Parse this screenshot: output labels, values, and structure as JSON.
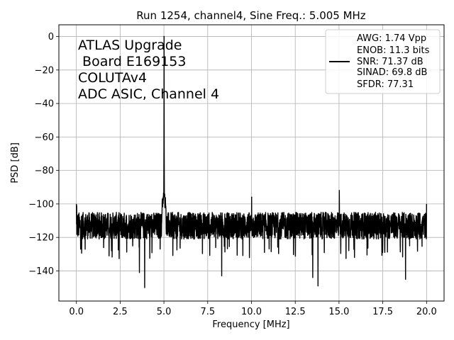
{
  "chart_data": {
    "type": "line",
    "title": "Run 1254, channel4, Sine Freq.: 5.005 MHz",
    "xlabel": "Frequency [MHz]",
    "ylabel": "PSD [dB]",
    "xlim": [
      -1.0,
      21.0
    ],
    "ylim": [
      -158,
      7
    ],
    "xticks": [
      0.0,
      2.5,
      5.0,
      7.5,
      10.0,
      12.5,
      15.0,
      17.5,
      20.0
    ],
    "xtick_labels": [
      "0.0",
      "2.5",
      "5.0",
      "7.5",
      "10.0",
      "12.5",
      "15.0",
      "17.5",
      "20.0"
    ],
    "yticks": [
      0,
      -20,
      -40,
      -60,
      -80,
      -100,
      -120,
      -140
    ],
    "ytick_labels": [
      "0",
      "−20",
      "−40",
      "−60",
      "−80",
      "−100",
      "−120",
      "−140"
    ],
    "grid": true,
    "annotation_lines": [
      "ATLAS Upgrade",
      " Board E169153",
      "COLUTAv4",
      "ADC ASIC, Channel 4"
    ],
    "legend": {
      "placement": "top-right",
      "lines": [
        "AWG: 1.74 Vpp",
        "ENOB: 11.3 bits",
        "SNR: 71.37 dB",
        "SINAD: 69.8 dB",
        "SFDR: 77.31"
      ]
    },
    "series": [
      {
        "color": "#000000",
        "noise_floor_db": -113,
        "noise_band_db": [
          -125,
          -100
        ],
        "start_db": -100,
        "end_db": -100,
        "peaks": [
          {
            "x": 5.005,
            "y": 0
          },
          {
            "x": 10.01,
            "y": -96
          },
          {
            "x": 15.015,
            "y": -92
          }
        ],
        "notable_dips": [
          {
            "x": 3.6,
            "y": -141
          },
          {
            "x": 3.9,
            "y": -150
          },
          {
            "x": 8.3,
            "y": -143
          },
          {
            "x": 13.5,
            "y": -144
          },
          {
            "x": 13.8,
            "y": -149
          },
          {
            "x": 18.8,
            "y": -145
          }
        ]
      }
    ]
  }
}
